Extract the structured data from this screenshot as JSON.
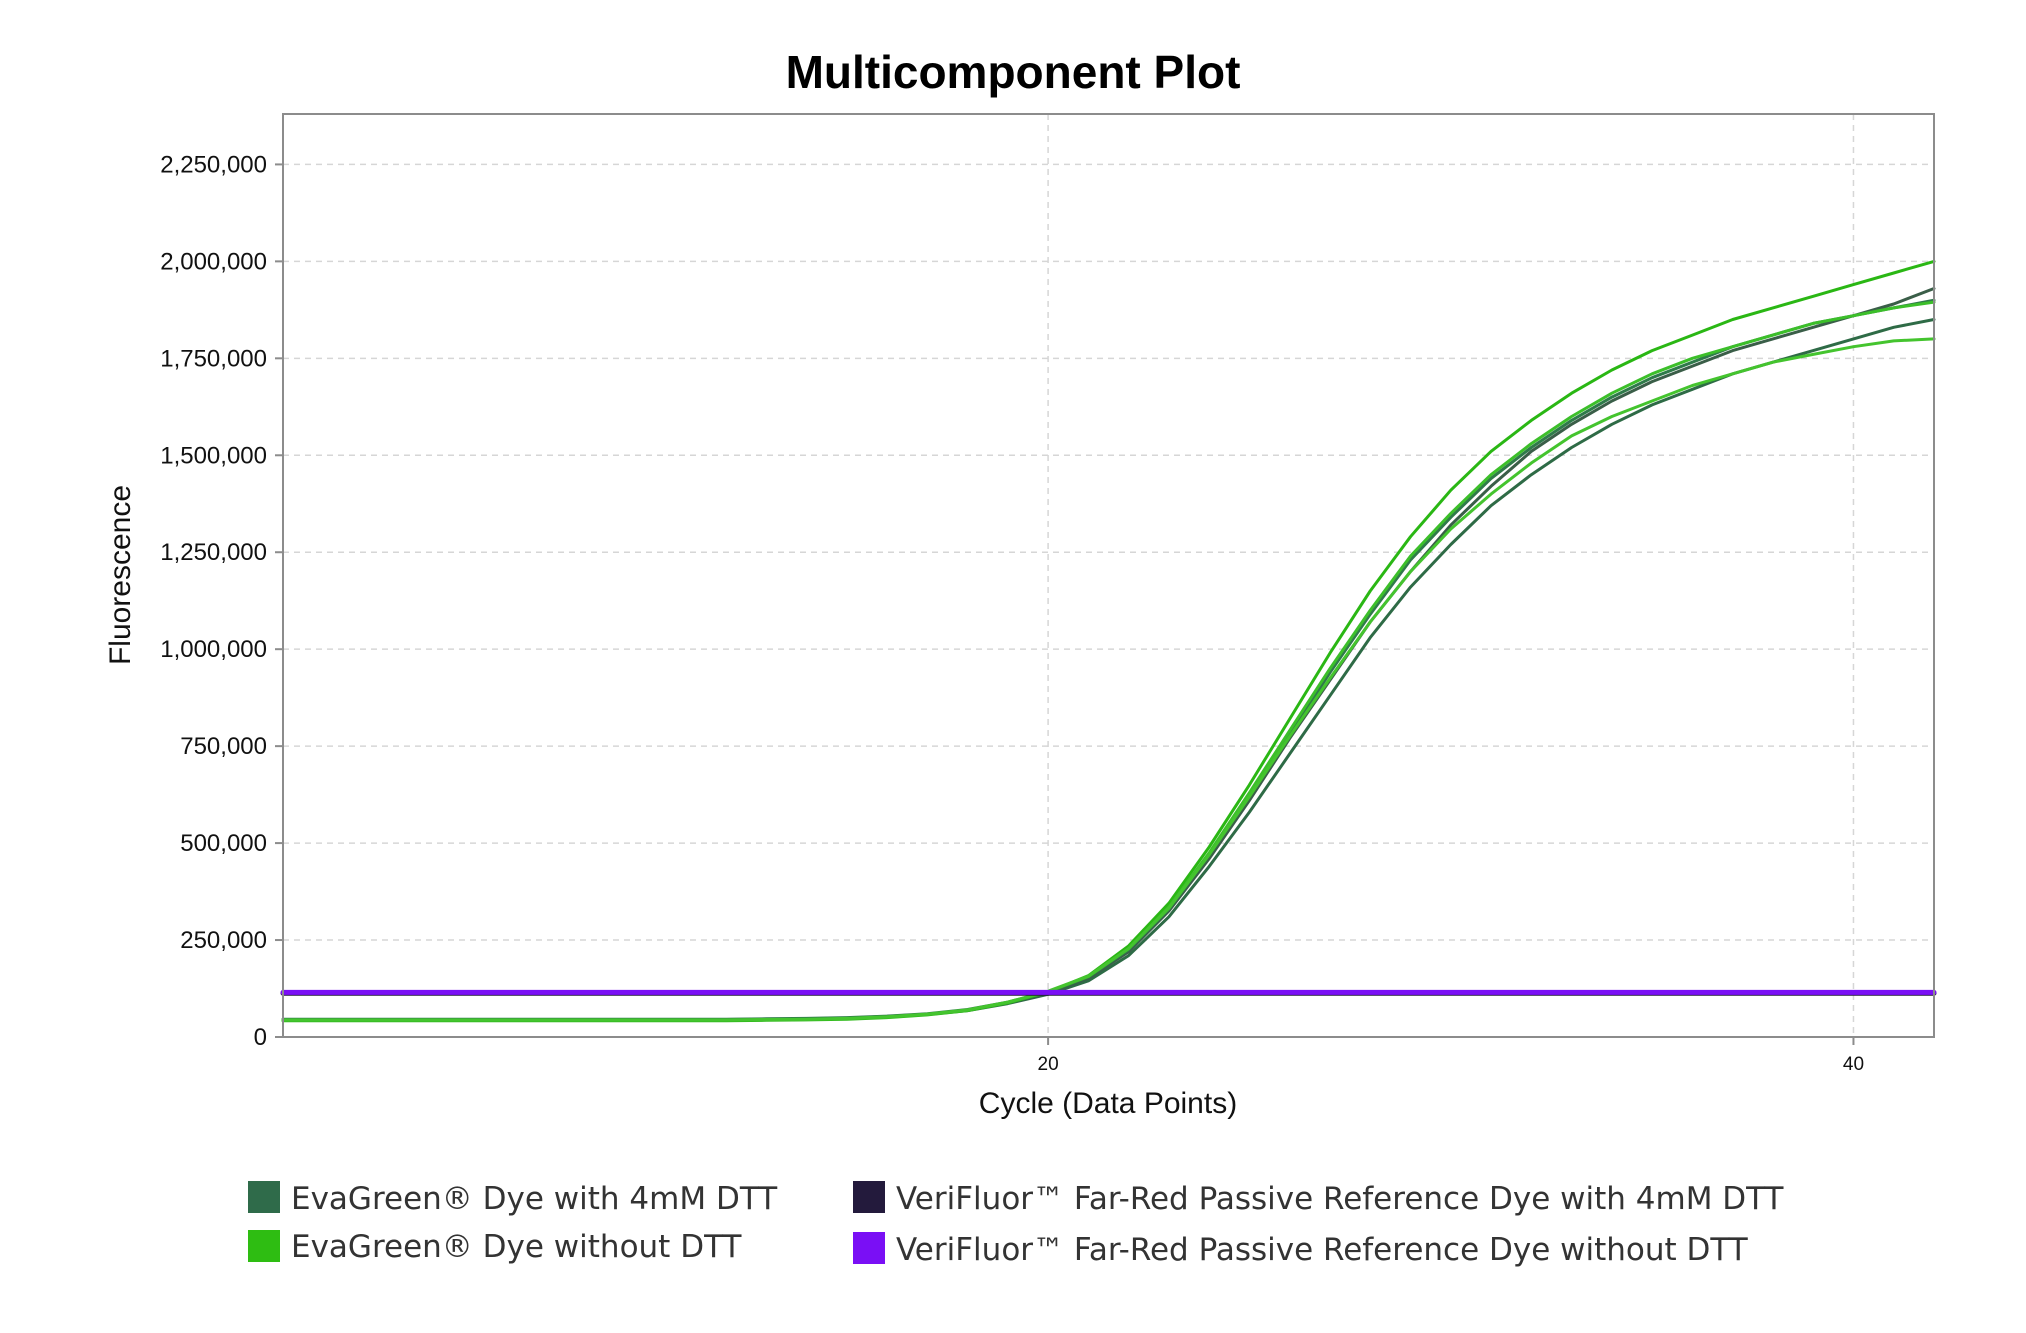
{
  "chart_data": {
    "type": "line",
    "title": "Multicomponent Plot",
    "xlabel": "Cycle (Data Points)",
    "ylabel": "Fluorescence",
    "xlim": [
      1,
      42
    ],
    "ylim": [
      0,
      2380000
    ],
    "x_ticks": [
      20,
      40
    ],
    "x_tick_labels": [
      "20",
      "40"
    ],
    "y_ticks": [
      0,
      250000,
      500000,
      750000,
      1000000,
      1250000,
      1500000,
      1750000,
      2000000,
      2250000
    ],
    "y_tick_labels": [
      "0",
      "250,000",
      "500,000",
      "750,000",
      "1,000,000",
      "1,250,000",
      "1,500,000",
      "1,750,000",
      "2,000,000",
      "2,250,000"
    ],
    "grid": true,
    "legend_position": "bottom",
    "x": [
      1,
      2,
      3,
      4,
      5,
      6,
      7,
      8,
      9,
      10,
      11,
      12,
      13,
      14,
      15,
      16,
      17,
      18,
      19,
      20,
      21,
      22,
      23,
      24,
      25,
      26,
      27,
      28,
      29,
      30,
      31,
      32,
      33,
      34,
      35,
      36,
      37,
      38,
      39,
      40,
      41,
      42
    ],
    "series": [
      {
        "name": "EvaGreen® Dye with 4mM DTT",
        "color": "#2e6b46",
        "values": [
          44000,
          44000,
          44000,
          44000,
          44000,
          44000,
          44000,
          44000,
          44000,
          44000,
          44000,
          44000,
          45000,
          46000,
          48000,
          52000,
          58000,
          68000,
          86000,
          110000,
          145000,
          210000,
          310000,
          440000,
          580000,
          730000,
          880000,
          1030000,
          1160000,
          1270000,
          1370000,
          1450000,
          1520000,
          1580000,
          1630000,
          1670000,
          1710000,
          1740000,
          1770000,
          1800000,
          1830000,
          1850000
        ]
      },
      {
        "name": "EvaGreen® Dye with 4mM DTT",
        "color": "#3a5e48",
        "values": [
          45000,
          45000,
          45000,
          45000,
          45000,
          45000,
          45000,
          45000,
          45000,
          45000,
          45000,
          45000,
          46000,
          47000,
          49000,
          53000,
          59000,
          70000,
          88000,
          114000,
          152000,
          220000,
          325000,
          460000,
          610000,
          770000,
          920000,
          1070000,
          1200000,
          1320000,
          1420000,
          1510000,
          1580000,
          1640000,
          1690000,
          1730000,
          1770000,
          1800000,
          1830000,
          1860000,
          1890000,
          1930000
        ]
      },
      {
        "name": "EvaGreen® Dye with 4mM DTT",
        "color": "#2f7a4a",
        "values": [
          46000,
          46000,
          46000,
          46000,
          46000,
          46000,
          46000,
          46000,
          46000,
          46000,
          46000,
          46000,
          47000,
          48000,
          50000,
          54000,
          60000,
          71000,
          90000,
          116000,
          155000,
          225000,
          330000,
          470000,
          620000,
          780000,
          940000,
          1090000,
          1230000,
          1340000,
          1440000,
          1520000,
          1590000,
          1650000,
          1700000,
          1740000,
          1780000,
          1810000,
          1840000,
          1860000,
          1880000,
          1900000
        ]
      },
      {
        "name": "EvaGreen® Dye without DTT",
        "color": "#2ab714",
        "values": [
          42000,
          42000,
          42000,
          42000,
          42000,
          42000,
          42000,
          42000,
          42000,
          42000,
          42000,
          42000,
          43000,
          44000,
          46000,
          50000,
          57000,
          68000,
          88000,
          116000,
          158000,
          235000,
          345000,
          490000,
          650000,
          820000,
          990000,
          1150000,
          1290000,
          1410000,
          1510000,
          1590000,
          1660000,
          1720000,
          1770000,
          1810000,
          1850000,
          1880000,
          1910000,
          1940000,
          1970000,
          2000000
        ]
      },
      {
        "name": "EvaGreen® Dye without DTT",
        "color": "#3cbf2a",
        "values": [
          43000,
          43000,
          43000,
          43000,
          43000,
          43000,
          43000,
          43000,
          43000,
          43000,
          43000,
          43000,
          44000,
          45000,
          47000,
          51000,
          58000,
          69000,
          89000,
          117000,
          156000,
          228000,
          335000,
          475000,
          630000,
          790000,
          950000,
          1100000,
          1240000,
          1350000,
          1450000,
          1530000,
          1600000,
          1660000,
          1710000,
          1750000,
          1780000,
          1810000,
          1840000,
          1860000,
          1880000,
          1895000
        ]
      },
      {
        "name": "EvaGreen® Dye without DTT",
        "color": "#44c42e",
        "values": [
          44000,
          44000,
          44000,
          44000,
          44000,
          44000,
          44000,
          44000,
          44000,
          44000,
          44000,
          44000,
          45000,
          46000,
          48000,
          52000,
          59000,
          70000,
          90000,
          118000,
          157000,
          228000,
          332000,
          470000,
          620000,
          775000,
          925000,
          1070000,
          1200000,
          1310000,
          1400000,
          1480000,
          1550000,
          1600000,
          1640000,
          1680000,
          1710000,
          1740000,
          1760000,
          1780000,
          1795000,
          1800000
        ]
      },
      {
        "name": "VeriFluor™ Far-Red Passive Reference Dye with 4mM DTT",
        "color": "#231a3c",
        "values": [
          113000,
          113000,
          113000,
          113000,
          113000,
          113000,
          113000,
          113000,
          113000,
          113000,
          113000,
          113000,
          113000,
          113000,
          113000,
          113000,
          113000,
          113000,
          113000,
          113000,
          113000,
          113000,
          113000,
          113000,
          113000,
          113000,
          113000,
          113000,
          113000,
          113000,
          113000,
          113000,
          113000,
          113000,
          113000,
          113000,
          113000,
          113000,
          113000,
          113000,
          113000,
          113000
        ]
      },
      {
        "name": "VeriFluor™ Far-Red Passive Reference Dye without DTT",
        "color": "#7a0ff5",
        "values": [
          115000,
          115000,
          115000,
          115000,
          115000,
          115000,
          115000,
          115000,
          115000,
          115000,
          115000,
          115000,
          115000,
          115000,
          115000,
          115000,
          115000,
          115000,
          115000,
          115000,
          115000,
          115000,
          115000,
          115000,
          115000,
          115000,
          115000,
          115000,
          115000,
          115000,
          115000,
          115000,
          115000,
          115000,
          115000,
          115000,
          115000,
          115000,
          115000,
          115000,
          115000,
          115000
        ]
      }
    ],
    "legend": [
      {
        "label": "EvaGreen® Dye with 4mM DTT",
        "color": "#2f6b4a"
      },
      {
        "label": "EvaGreen® Dye without DTT",
        "color": "#2ebd12"
      },
      {
        "label": "VeriFluor™ Far-Red Passive Reference Dye with 4mM DTT",
        "color": "#231a3c"
      },
      {
        "label": "VeriFluor™ Far-Red Passive Reference Dye without DTT",
        "color": "#7a0ff5"
      }
    ]
  }
}
